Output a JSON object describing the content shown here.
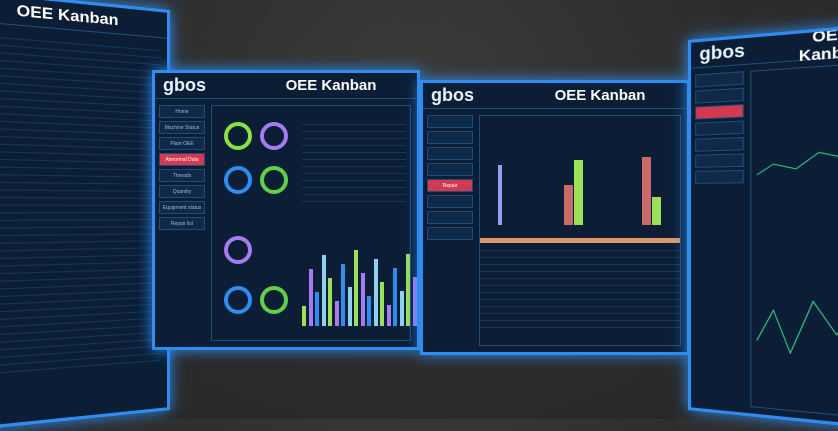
{
  "screens": [
    {
      "logo": "",
      "title": "OEE Kanban"
    },
    {
      "logo": "gbos",
      "title": "OEE Kanban",
      "sidebar": [
        "Home",
        "Machine Status",
        "Plant OEE",
        "Abnormal Data",
        "Threads",
        "Quantity",
        "Equipment status",
        "Repair list"
      ],
      "active": 3
    },
    {
      "logo": "gbos",
      "title": "OEE Kanban",
      "sidebar": [
        "",
        "",
        "",
        "",
        "Repair",
        "",
        "",
        ""
      ],
      "active": 4
    },
    {
      "logo": "gbos",
      "title": "OEE Kanban",
      "sidebar": [
        "",
        "",
        "",
        "",
        "",
        "",
        ""
      ],
      "active": 2
    }
  ],
  "colors": {
    "accent": "#2f8cf0",
    "active": "#d23a52",
    "bg": "#0b1e35"
  }
}
